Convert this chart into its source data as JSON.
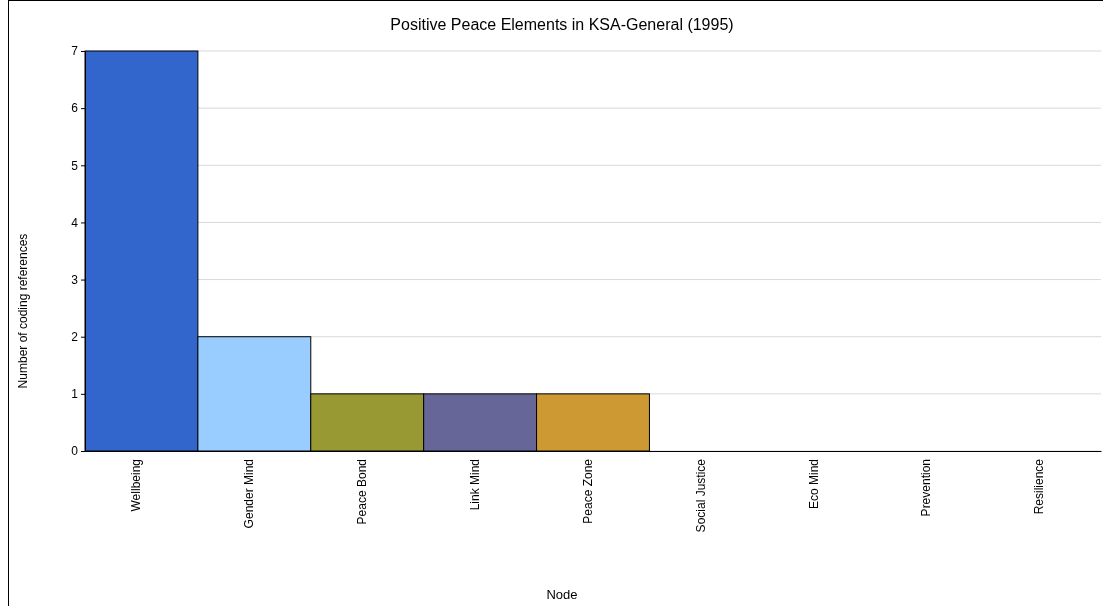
{
  "chart_data": {
    "type": "bar",
    "title": "Positive Peace Elements in KSA-General (1995)",
    "xlabel": "Node",
    "ylabel": "Number of coding references",
    "categories": [
      "Wellbeing",
      "Gender Mind",
      "Peace Bond",
      "Link Mind",
      "Peace Zone",
      "Social Justice",
      "Eco Mind",
      "Prevention",
      "Resilience"
    ],
    "values": [
      7,
      2,
      1,
      1,
      1,
      0,
      0,
      0,
      0
    ],
    "colors": [
      "#3366cc",
      "#99ccff",
      "#999933",
      "#666699",
      "#cc9933",
      "#993333",
      "#339966",
      "#cccc66",
      "#999999"
    ],
    "ylim": [
      0,
      7
    ],
    "yticks": [
      0,
      1,
      2,
      3,
      4,
      5,
      6,
      7
    ],
    "grid": "y"
  }
}
